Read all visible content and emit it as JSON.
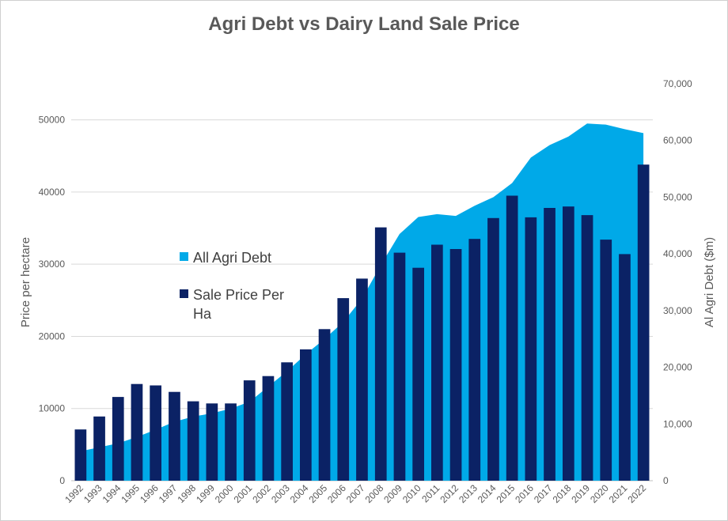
{
  "chart_data": {
    "type": "bar",
    "title": "Agri Debt vs Dairy Land Sale Price",
    "ylabel": "Price per hectare",
    "y2label": "Al Agri Debt ($m)",
    "categories": [
      "1992",
      "1993",
      "1994",
      "1995",
      "1996",
      "1997",
      "1998",
      "1999",
      "2000",
      "2001",
      "2002",
      "2003",
      "2004",
      "2005",
      "2006",
      "2007",
      "2008",
      "2009",
      "2010",
      "2011",
      "2012",
      "2013",
      "2014",
      "2015",
      "2016",
      "2017",
      "2018",
      "2019",
      "2020",
      "2021",
      "2022"
    ],
    "ylim": [
      0,
      50000
    ],
    "y_ticks": [
      "0",
      "10000",
      "20000",
      "30000",
      "40000",
      "50000"
    ],
    "y2lim": [
      0,
      70000
    ],
    "y2_ticks": [
      "0",
      "10,000",
      "20,000",
      "30,000",
      "40,000",
      "50,000",
      "60,000",
      "70,000"
    ],
    "grid": true,
    "legend_position": "left-middle",
    "series": [
      {
        "name": "All Agri Debt",
        "kind": "area",
        "axis": "right",
        "color": "#00a9e8",
        "values": [
          5200,
          5900,
          6600,
          7700,
          9000,
          10400,
          11300,
          11900,
          12700,
          13900,
          16600,
          19300,
          22300,
          25000,
          28000,
          32100,
          38000,
          43500,
          46500,
          47000,
          46700,
          48500,
          50000,
          52500,
          57000,
          59200,
          60700,
          63000,
          62800,
          62000,
          61300
        ]
      },
      {
        "name": "Sale Price Per Ha",
        "kind": "bar",
        "axis": "left",
        "color": "#0b2265",
        "values": [
          7100,
          8900,
          11600,
          13400,
          13200,
          12300,
          11000,
          10700,
          10700,
          13900,
          14500,
          16400,
          18200,
          21000,
          25300,
          28000,
          35100,
          31600,
          29500,
          32700,
          32100,
          33500,
          36400,
          39500,
          36500,
          37800,
          38000,
          36800,
          33400,
          31400,
          43800
        ]
      }
    ]
  }
}
